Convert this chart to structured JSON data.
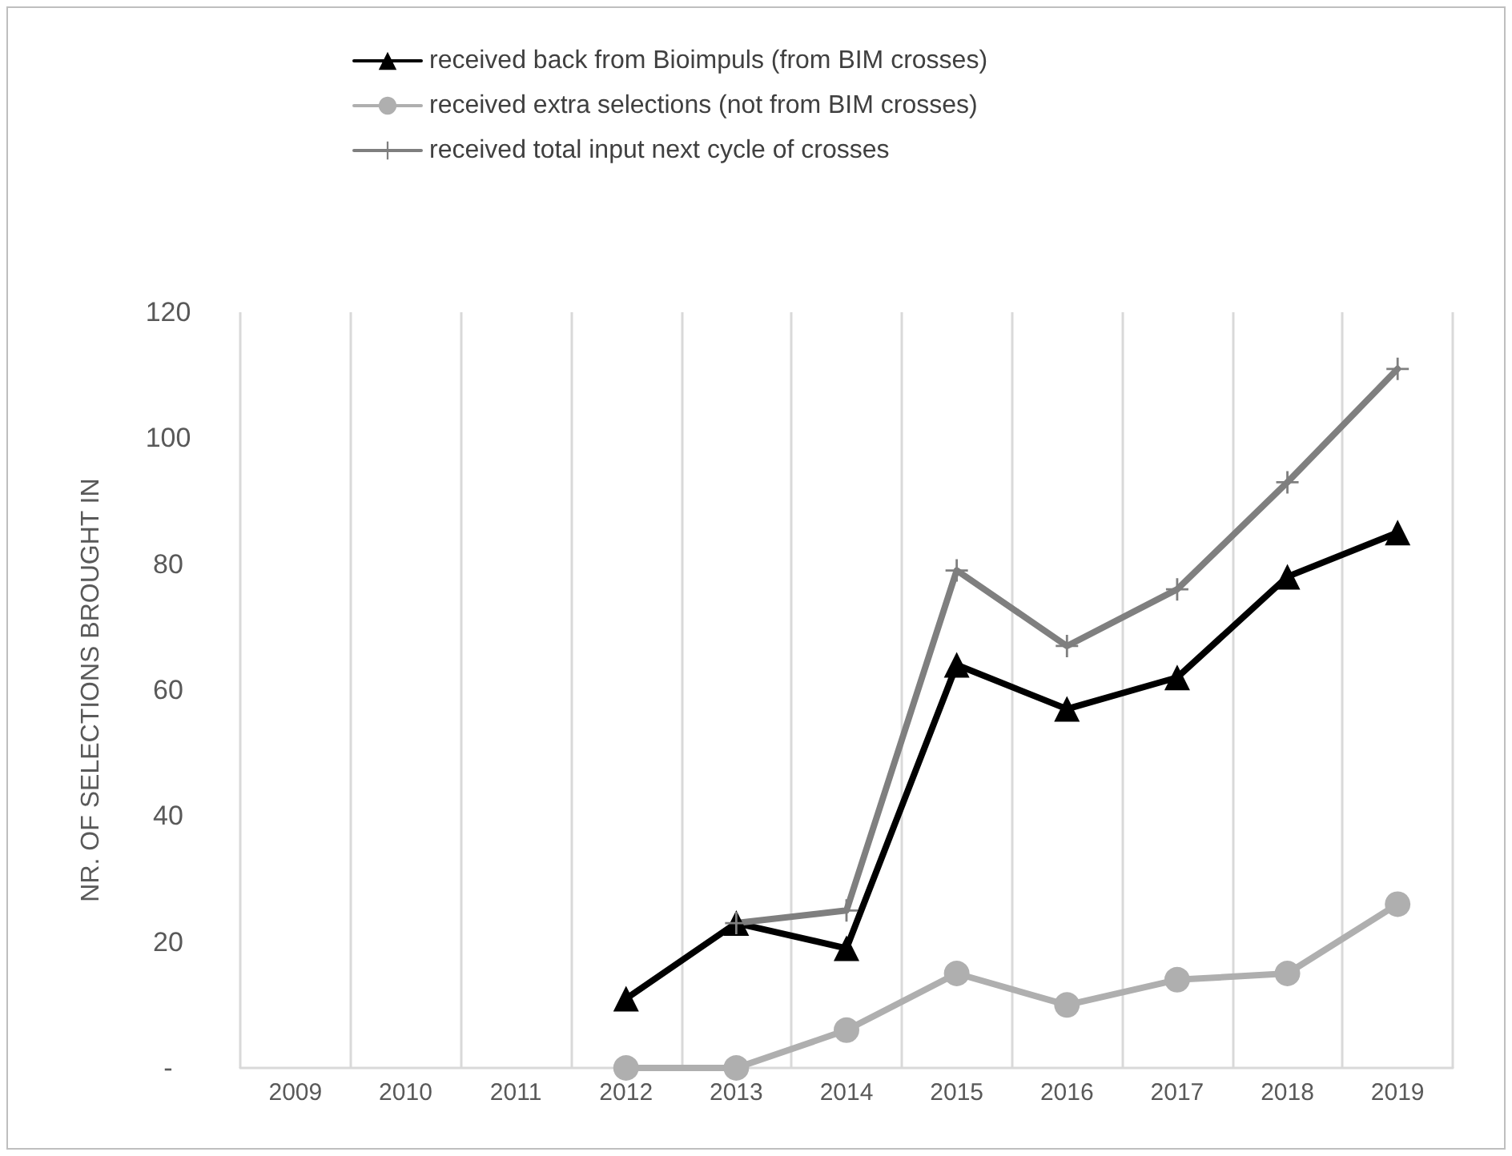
{
  "chart_data": {
    "type": "line",
    "ylabel": "NR. OF SELECTIONS BROUGHT IN",
    "categories": [
      "2009",
      "2010",
      "2011",
      "2012",
      "2013",
      "2014",
      "2015",
      "2016",
      "2017",
      "2018",
      "2019"
    ],
    "series": [
      {
        "name": "received back from Bioimpuls (from BIM crosses)",
        "color": "#000000",
        "marker": "triangle",
        "values": [
          null,
          null,
          null,
          11,
          23,
          19,
          64,
          57,
          62,
          78,
          85
        ]
      },
      {
        "name": "received extra selections (not from BIM crosses)",
        "color": "#afafaf",
        "marker": "circle",
        "values": [
          null,
          null,
          null,
          0,
          0,
          6,
          15,
          10,
          14,
          15,
          26
        ]
      },
      {
        "name": "received total input next cycle of crosses",
        "color": "#7f7f7f",
        "marker": "cross",
        "values": [
          null,
          null,
          null,
          null,
          23,
          25,
          79,
          67,
          76,
          93,
          111
        ]
      }
    ],
    "ylim": [
      0,
      120
    ],
    "yticks": [
      {
        "value": 0,
        "label": "-"
      },
      20,
      40,
      60,
      80,
      100,
      120
    ],
    "grid": "x",
    "legend": "top"
  }
}
